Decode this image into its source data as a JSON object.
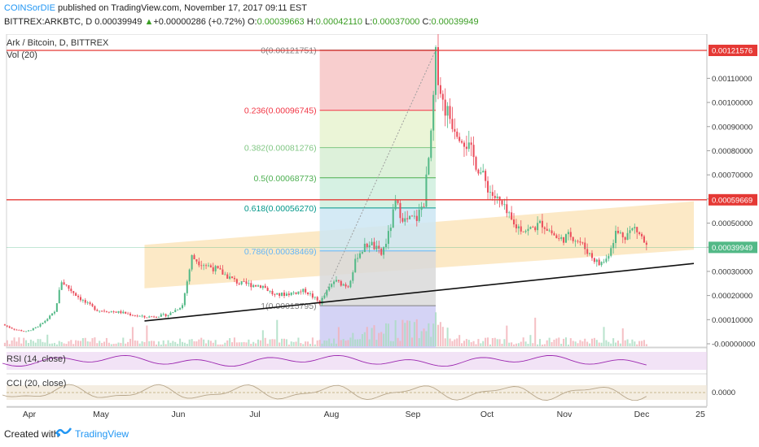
{
  "header": {
    "author": "COINSorDIE",
    "published": "published on TradingView.com, November 17, 2017 09:11 EST",
    "symbol": "BITTREX:ARKBTC, D",
    "last": "0.00039949",
    "change_arrow": "▲",
    "change": "+0.00000286 (+0.72%)",
    "o_label": "O:",
    "o_value": "0.00039663",
    "h_label": "H:",
    "h_value": "0.00042110",
    "l_label": "L:",
    "l_value": "0.00037000",
    "c_label": "C:",
    "c_value": "0.00039949"
  },
  "legend": {
    "title": "Ark / Bitcoin, D, BITTREX",
    "vol": "Vol (20)",
    "rsi": "RSI (14, close)",
    "cci": "CCI (20, close)"
  },
  "footer": {
    "created": "Created with",
    "brand": "TradingView"
  },
  "colors": {
    "up": "#53b987",
    "down": "#eb4d5c",
    "rsi": "#9c27b0",
    "cci": "#b7a68a",
    "band": "#fbe4b8",
    "hline": "#e53935",
    "brand": "#2196f3"
  },
  "chart_data": [
    {
      "type": "candlestick",
      "title": "Ark / Bitcoin, D, BITTREX",
      "x_ticks": [
        "Apr",
        "May",
        "Jun",
        "Jul",
        "Aug",
        "Sep",
        "Oct",
        "Nov",
        "Dec",
        "25"
      ],
      "y_ticks": [
        "0.00110000",
        "0.00100000",
        "0.00090000",
        "0.00080000",
        "0.00070000",
        "0.00060000",
        "0.00050000",
        "0.00040000",
        "0.00030000",
        "0.00020000",
        "0.00010000",
        "-0.00000000"
      ],
      "ylim": [
        0,
        0.00124
      ],
      "price_labels": [
        "0.00121576",
        "0.00059669",
        "0.00039949"
      ],
      "horizontal_lines": [
        0.00121576,
        0.00059669
      ],
      "fibonacci": {
        "levels": [
          {
            "label": "0(0.00121751)",
            "value": 0.00121751,
            "color": "#808080"
          },
          {
            "label": "0.236(0.00096745)",
            "value": 0.00096745,
            "color": "#f23645"
          },
          {
            "label": "0.382(0.00081276)",
            "value": 0.00081276,
            "color": "#81c784"
          },
          {
            "label": "0.5(0.00068773)",
            "value": 0.00068773,
            "color": "#4caf50"
          },
          {
            "label": "0.618(0.00056270)",
            "value": 0.0005627,
            "color": "#009688"
          },
          {
            "label": "0.786(0.00038469)",
            "value": 0.00038469,
            "color": "#64b5f6"
          },
          {
            "label": "1(0.00015795)",
            "value": 0.00015795,
            "color": "#808080"
          }
        ]
      },
      "x_range_days": [
        0,
        292
      ],
      "trend_channel": {
        "lower": [
          [
            60,
            0.00023
          ],
          [
            292,
            0.00039
          ]
        ],
        "upper": [
          [
            60,
            0.00041
          ],
          [
            292,
            0.00059
          ]
        ]
      },
      "support_line": [
        [
          60,
          9.45e-05
        ],
        [
          292,
          0.0003327
        ]
      ],
      "fib_range_days": [
        134,
        183
      ],
      "dotted_line": [
        [
          134,
          0.00015795
        ],
        [
          183,
          0.00121751
        ]
      ],
      "close_path": [
        [
          0,
          8e-05
        ],
        [
          5,
          6e-05
        ],
        [
          10,
          5e-05
        ],
        [
          15,
          7e-05
        ],
        [
          22,
          0.00013
        ],
        [
          25,
          0.00026
        ],
        [
          28,
          0.00023
        ],
        [
          35,
          0.00017
        ],
        [
          40,
          0.00014
        ],
        [
          50,
          0.00013
        ],
        [
          60,
          0.00011
        ],
        [
          70,
          0.00012
        ],
        [
          76,
          0.00016
        ],
        [
          80,
          0.00036
        ],
        [
          83,
          0.00034
        ],
        [
          90,
          0.00031
        ],
        [
          100,
          0.00025
        ],
        [
          110,
          0.00024
        ],
        [
          115,
          0.0002
        ],
        [
          122,
          0.00021
        ],
        [
          128,
          0.00022
        ],
        [
          134,
          0.00017
        ],
        [
          140,
          0.00026
        ],
        [
          146,
          0.00024
        ],
        [
          150,
          0.00037
        ],
        [
          155,
          0.00042
        ],
        [
          160,
          0.00037
        ],
        [
          163,
          0.00045
        ],
        [
          166,
          0.00058
        ],
        [
          170,
          0.00051
        ],
        [
          175,
          0.00052
        ],
        [
          178,
          0.00059
        ],
        [
          181,
          0.00085
        ],
        [
          183,
          0.00118
        ],
        [
          186,
          0.001
        ],
        [
          190,
          0.00092
        ],
        [
          195,
          0.00085
        ],
        [
          200,
          0.00075
        ],
        [
          206,
          0.00063
        ],
        [
          211,
          0.00057
        ],
        [
          216,
          0.00049
        ],
        [
          222,
          0.00047
        ],
        [
          228,
          0.0005
        ],
        [
          235,
          0.00043
        ],
        [
          240,
          0.00045
        ],
        [
          244,
          0.00042
        ],
        [
          249,
          0.00036
        ],
        [
          252,
          0.00033
        ],
        [
          255,
          0.00035
        ],
        [
          259,
          0.00046
        ],
        [
          263,
          0.00045
        ],
        [
          267,
          0.00048
        ],
        [
          270,
          0.00044
        ],
        [
          272,
          0.0004
        ]
      ]
    },
    {
      "type": "line",
      "title": "RSI (14, close)"
    },
    {
      "type": "line",
      "title": "CCI (20, close)",
      "y_ticks": [
        "0.0000"
      ]
    }
  ]
}
